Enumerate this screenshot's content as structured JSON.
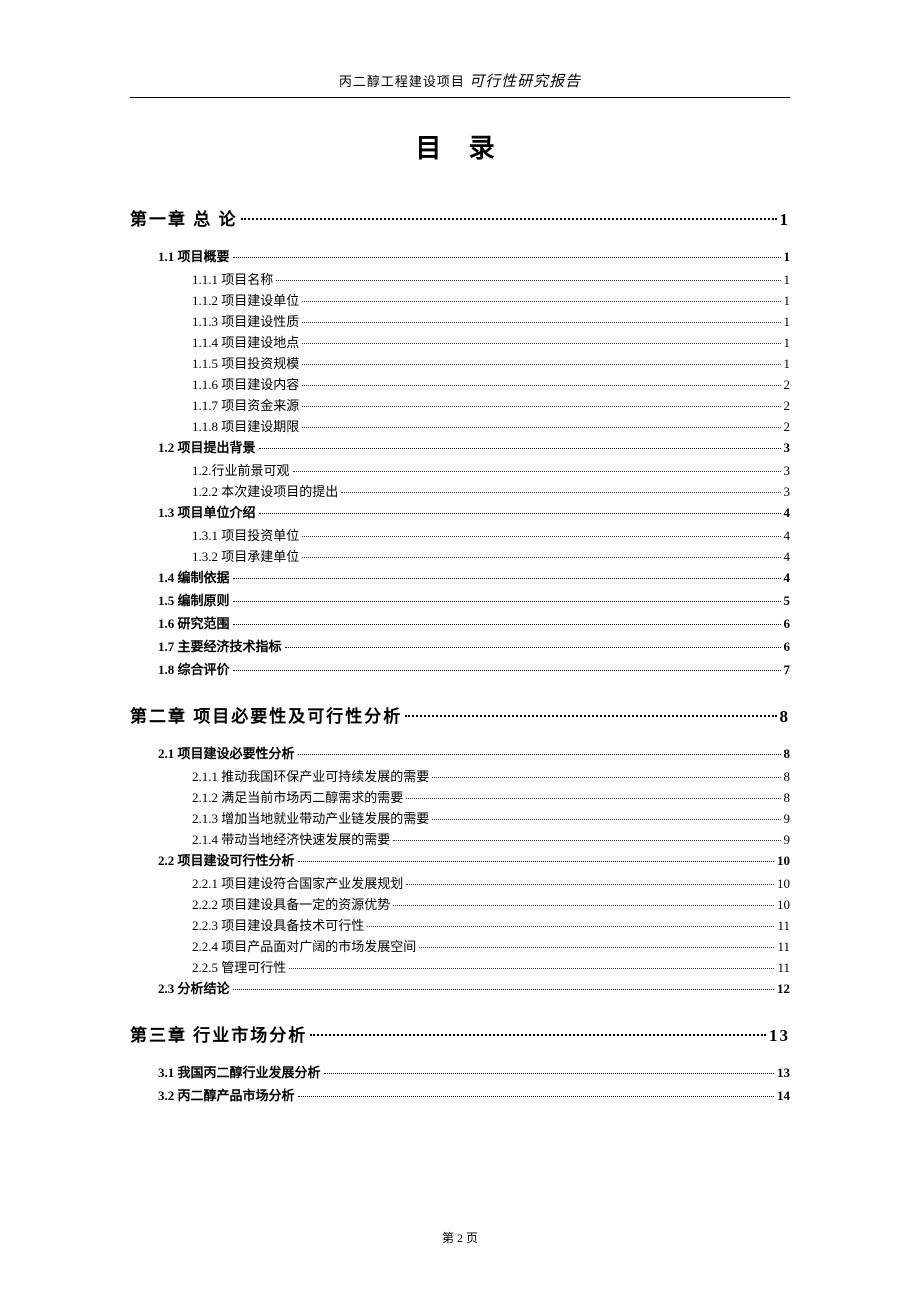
{
  "header": {
    "plain": "丙二醇工程建设项目",
    "italic": "可行性研究报告"
  },
  "title": "目 录",
  "footer": "第 2 页",
  "toc": [
    {
      "level": 1,
      "label": "第一章 总 论",
      "page": "1"
    },
    {
      "level": 2,
      "label": "1.1 项目概要",
      "page": "1"
    },
    {
      "level": 3,
      "label": "1.1.1 项目名称",
      "page": "1"
    },
    {
      "level": 3,
      "label": "1.1.2 项目建设单位",
      "page": "1"
    },
    {
      "level": 3,
      "label": "1.1.3 项目建设性质",
      "page": "1"
    },
    {
      "level": 3,
      "label": "1.1.4 项目建设地点",
      "page": "1"
    },
    {
      "level": 3,
      "label": "1.1.5 项目投资规模",
      "page": "1"
    },
    {
      "level": 3,
      "label": "1.1.6 项目建设内容",
      "page": "2"
    },
    {
      "level": 3,
      "label": "1.1.7 项目资金来源",
      "page": "2"
    },
    {
      "level": 3,
      "label": "1.1.8 项目建设期限",
      "page": "2"
    },
    {
      "level": 2,
      "label": "1.2 项目提出背景",
      "page": "3"
    },
    {
      "level": 3,
      "label": "1.2.行业前景可观",
      "page": "3"
    },
    {
      "level": 3,
      "label": "1.2.2 本次建设项目的提出",
      "page": "3"
    },
    {
      "level": 2,
      "label": "1.3 项目单位介绍",
      "page": "4"
    },
    {
      "level": 3,
      "label": "1.3.1 项目投资单位",
      "page": "4"
    },
    {
      "level": 3,
      "label": "1.3.2 项目承建单位",
      "page": "4"
    },
    {
      "level": 2,
      "label": "1.4 编制依据",
      "page": "4"
    },
    {
      "level": 2,
      "label": "1.5 编制原则",
      "page": "5"
    },
    {
      "level": 2,
      "label": "1.6 研究范围",
      "page": "6"
    },
    {
      "level": 2,
      "label": "1.7 主要经济技术指标",
      "page": "6"
    },
    {
      "level": 2,
      "label": "1.8 综合评价",
      "page": "7"
    },
    {
      "level": 1,
      "label": "第二章 项目必要性及可行性分析",
      "page": "8"
    },
    {
      "level": 2,
      "label": "2.1 项目建设必要性分析",
      "page": "8"
    },
    {
      "level": 3,
      "label": "2.1.1 推动我国环保产业可持续发展的需要",
      "page": "8"
    },
    {
      "level": 3,
      "label": "2.1.2 满足当前市场丙二醇需求的需要",
      "page": "8"
    },
    {
      "level": 3,
      "label": "2.1.3 增加当地就业带动产业链发展的需要",
      "page": "9"
    },
    {
      "level": 3,
      "label": "2.1.4 带动当地经济快速发展的需要",
      "page": "9"
    },
    {
      "level": 2,
      "label": "2.2 项目建设可行性分析",
      "page": "10"
    },
    {
      "level": 3,
      "label": "2.2.1 项目建设符合国家产业发展规划",
      "page": "10"
    },
    {
      "level": 3,
      "label": "2.2.2 项目建设具备一定的资源优势",
      "page": "10"
    },
    {
      "level": 3,
      "label": "2.2.3 项目建设具备技术可行性",
      "page": "11"
    },
    {
      "level": 3,
      "label": "2.2.4 项目产品面对广阔的市场发展空间",
      "page": "11"
    },
    {
      "level": 3,
      "label": "2.2.5 管理可行性",
      "page": "11"
    },
    {
      "level": 2,
      "label": "2.3 分析结论",
      "page": "12"
    },
    {
      "level": 1,
      "label": "第三章 行业市场分析",
      "page": "13"
    },
    {
      "level": 2,
      "label": "3.1 我国丙二醇行业发展分析",
      "page": "13"
    },
    {
      "level": 2,
      "label": "3.2 丙二醇产品市场分析",
      "page": "14"
    }
  ]
}
